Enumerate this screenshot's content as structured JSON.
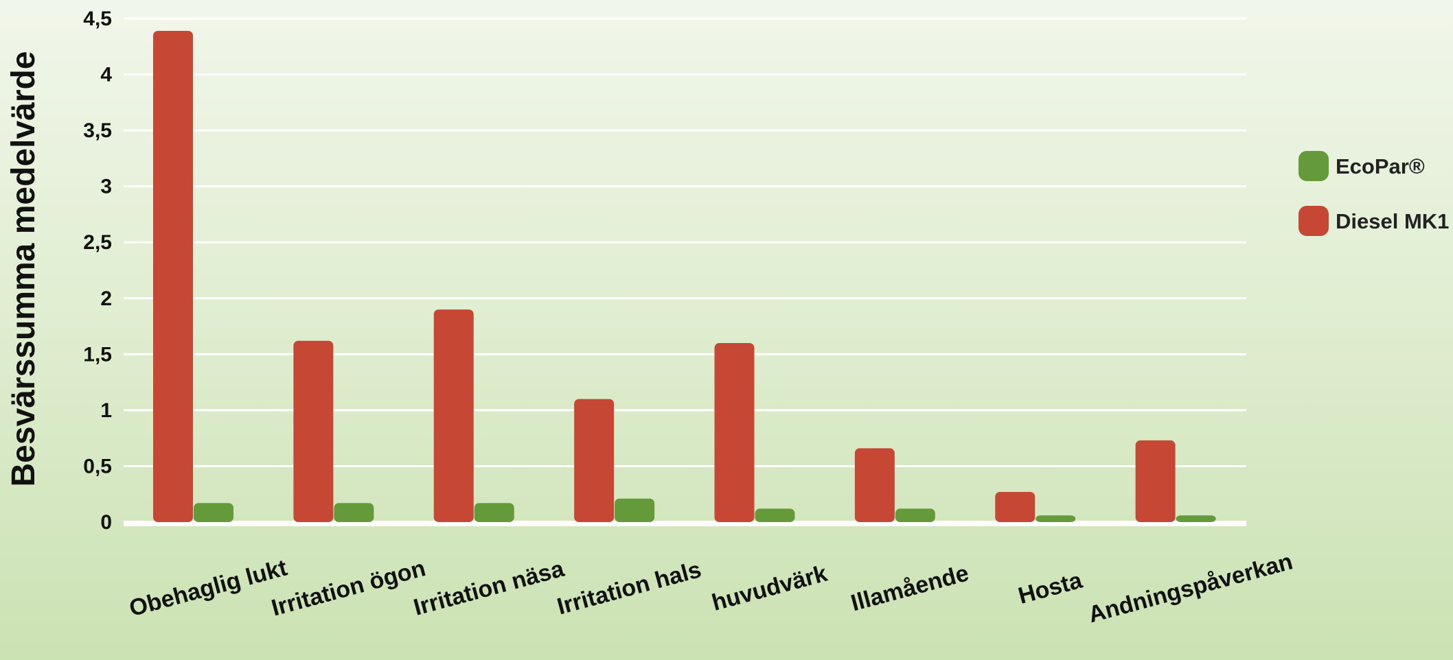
{
  "chart_data": {
    "type": "bar",
    "title": "",
    "xlabel": "",
    "ylabel": "Besvärssumma medelvärde",
    "ylim": [
      0,
      4.5
    ],
    "yticks": [
      0,
      0.5,
      1,
      1.5,
      2,
      2.5,
      3,
      3.5,
      4,
      4.5
    ],
    "ytick_labels": [
      "0",
      "0,5",
      "1",
      "1,5",
      "2",
      "2,5",
      "3",
      "3,5",
      "4",
      "4,5"
    ],
    "grid": true,
    "legend_position": "right",
    "categories": [
      "Obehaglig lukt",
      "Irritation ögon",
      "Irritation näsa",
      "Irritation hals",
      "huvudvärk",
      "Illamående",
      "Hosta",
      "Andningspåverkan"
    ],
    "series": [
      {
        "name": "Diesel MK1",
        "color": "#c74735",
        "values": [
          4.39,
          1.62,
          1.9,
          1.1,
          1.6,
          0.66,
          0.27,
          0.73
        ]
      },
      {
        "name": "EcoPar®",
        "color": "#659a3a",
        "values": [
          0.17,
          0.17,
          0.17,
          0.21,
          0.12,
          0.12,
          0.06,
          0.06
        ]
      }
    ],
    "legend_order": [
      "EcoPar®",
      "Diesel MK1"
    ]
  }
}
